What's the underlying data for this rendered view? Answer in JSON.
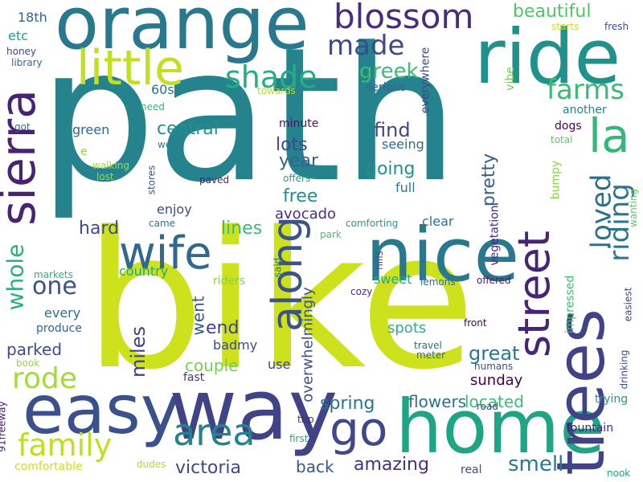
{
  "words": [
    {
      "text": "path",
      "color": "#25838e"
    },
    {
      "text": "bike",
      "color": "#cde11d"
    },
    {
      "text": "orange",
      "color": "#2a788e"
    },
    {
      "text": "ride",
      "color": "#21918c"
    },
    {
      "text": "home",
      "color": "#20a486"
    },
    {
      "text": "easy",
      "color": "#3b518b"
    },
    {
      "text": "way",
      "color": "#404387"
    },
    {
      "text": "nice",
      "color": "#2a788e"
    },
    {
      "text": "trees",
      "color": "#404387"
    },
    {
      "text": "little",
      "color": "#c2df23"
    },
    {
      "text": "sierra",
      "color": "#482374"
    },
    {
      "text": "go",
      "color": "#3e4989"
    },
    {
      "text": "street",
      "color": "#482475"
    },
    {
      "text": "blossom",
      "color": "#472d7b"
    },
    {
      "text": "wife",
      "color": "#31688e"
    },
    {
      "text": "along",
      "color": "#3b528b"
    },
    {
      "text": "la",
      "color": "#35b779"
    },
    {
      "text": "area",
      "color": "#26828e"
    },
    {
      "text": "family",
      "color": "#bddf26"
    },
    {
      "text": "rode",
      "color": "#a5db36"
    },
    {
      "text": "made",
      "color": "#3e4a89"
    },
    {
      "text": "shade",
      "color": "#27ad81"
    },
    {
      "text": "farms",
      "color": "#3aba76"
    },
    {
      "text": "loved",
      "color": "#2e6f8e"
    },
    {
      "text": "riding",
      "color": "#2a768e"
    },
    {
      "text": "whole",
      "color": "#2ab07f"
    },
    {
      "text": "one",
      "color": "#3c508b"
    },
    {
      "text": "greek",
      "color": "#3dbc74"
    },
    {
      "text": "beautiful",
      "color": "#52c569"
    },
    {
      "text": "victoria",
      "color": "#3e4a89"
    },
    {
      "text": "amazing",
      "color": "#46327e"
    },
    {
      "text": "smell",
      "color": "#2a788e"
    },
    {
      "text": "miles",
      "color": "#424086"
    },
    {
      "text": "great",
      "color": "#2a788e"
    },
    {
      "text": "parked",
      "color": "#3d4d8a"
    },
    {
      "text": "spring",
      "color": "#2c728e"
    },
    {
      "text": "back",
      "color": "#39568c"
    },
    {
      "text": "pretty",
      "color": "#355f8d"
    },
    {
      "text": "central",
      "color": "#21918c"
    },
    {
      "text": "lots",
      "color": "#3e4989"
    },
    {
      "text": "year",
      "color": "#33628d"
    },
    {
      "text": "free",
      "color": "#218f8d"
    },
    {
      "text": "find",
      "color": "#3f4788"
    },
    {
      "text": "going",
      "color": "#21918c"
    },
    {
      "text": "lines",
      "color": "#3aba76"
    },
    {
      "text": "hard",
      "color": "#3e4c8a"
    },
    {
      "text": "went",
      "color": "#38588c"
    },
    {
      "text": "end",
      "color": "#414487"
    },
    {
      "text": "overwhelmingly",
      "color": "#3b518b"
    },
    {
      "text": "sunday",
      "color": "#440154"
    },
    {
      "text": "located",
      "color": "#3bbb75"
    },
    {
      "text": "flowers",
      "color": "#2c718e"
    },
    {
      "text": "couple",
      "color": "#75d054"
    },
    {
      "text": "spots",
      "color": "#2db27d"
    },
    {
      "text": "avocado",
      "color": "#46307e"
    },
    {
      "text": "sweet",
      "color": "#26ad81"
    },
    {
      "text": "60s",
      "color": "#2b748e"
    },
    {
      "text": "etc",
      "color": "#1fa188"
    },
    {
      "text": "18th",
      "color": "#33638d"
    },
    {
      "text": "enjoy",
      "color": "#3e4c8a"
    },
    {
      "text": "country",
      "color": "#23a983"
    },
    {
      "text": "every",
      "color": "#2e6e8e"
    },
    {
      "text": "green",
      "color": "#31688e"
    },
    {
      "text": "everywhere",
      "color": "#3f4889"
    },
    {
      "text": "full",
      "color": "#2a788e"
    },
    {
      "text": "seeing",
      "color": "#2e6e8e"
    },
    {
      "text": "minute",
      "color": "#471365"
    },
    {
      "text": "vegetation",
      "color": "#482677"
    },
    {
      "text": "clear",
      "color": "#2d718e"
    },
    {
      "text": "use",
      "color": "#414487"
    },
    {
      "text": "badmy",
      "color": "#3e4a89"
    },
    {
      "text": "riders",
      "color": "#84d44b"
    },
    {
      "text": "fast",
      "color": "#453581"
    },
    {
      "text": "bumpy",
      "color": "#86d549"
    },
    {
      "text": "impressed",
      "color": "#40bd72"
    },
    {
      "text": "vibe",
      "color": "#7ad151"
    },
    {
      "text": "fountain",
      "color": "#481f70"
    },
    {
      "text": "drinking",
      "color": "#3e4a89"
    },
    {
      "text": "produce",
      "color": "#32658e"
    },
    {
      "text": "serious",
      "color": "#31688e"
    },
    {
      "text": "another",
      "color": "#25848e"
    },
    {
      "text": "dogs",
      "color": "#440154"
    },
    {
      "text": "trying",
      "color": "#1f9a8a"
    },
    {
      "text": "easiest",
      "color": "#3e4c8a"
    },
    {
      "text": "wanting",
      "color": "#5ec962"
    },
    {
      "text": "total",
      "color": "#5cc863"
    },
    {
      "text": "travel",
      "color": "#2d708e"
    },
    {
      "text": "meter",
      "color": "#33638d"
    },
    {
      "text": "humans",
      "color": "#3e4c8a"
    },
    {
      "text": "front",
      "color": "#440154"
    },
    {
      "text": "offered",
      "color": "#481c6e"
    },
    {
      "text": "lemons",
      "color": "#30698e"
    },
    {
      "text": "honey",
      "color": "#3f4889"
    },
    {
      "text": "library",
      "color": "#2f6c8e"
    },
    {
      "text": "fresh",
      "color": "#3e4a89"
    },
    {
      "text": "starts",
      "color": "#c8e020"
    },
    {
      "text": "walking",
      "color": "#a2da37"
    },
    {
      "text": "lost",
      "color": "#a0da39"
    },
    {
      "text": "stores",
      "color": "#3b528b"
    },
    {
      "text": "offers",
      "color": "#1f9e89"
    },
    {
      "text": "paved",
      "color": "#482576"
    },
    {
      "text": "towards",
      "color": "#b5de2b"
    },
    {
      "text": "need",
      "color": "#37b878"
    },
    {
      "text": "got",
      "color": "#2e6e8e"
    },
    {
      "text": "well",
      "color": "#297b8e"
    },
    {
      "text": "e",
      "color": "#9bd93c"
    },
    {
      "text": "came",
      "color": "#2c738e"
    },
    {
      "text": "said",
      "color": "#2c728e"
    },
    {
      "text": "park",
      "color": "#4ac16d"
    },
    {
      "text": "hills",
      "color": "#3e4c8a"
    },
    {
      "text": "comforting",
      "color": "#1f9f88"
    },
    {
      "text": "cozy",
      "color": "#472c7a"
    },
    {
      "text": "markets",
      "color": "#2db27d"
    },
    {
      "text": "book",
      "color": "#95d840"
    },
    {
      "text": "comfortable",
      "color": "#cde11d"
    },
    {
      "text": "91freeway",
      "color": "#482071"
    },
    {
      "text": "dudes",
      "color": "#addc30"
    },
    {
      "text": "trip",
      "color": "#472d7b"
    },
    {
      "text": "first",
      "color": "#23a983"
    },
    {
      "text": "road",
      "color": "#424086"
    },
    {
      "text": "real",
      "color": "#3d4e8a"
    },
    {
      "text": "nook",
      "color": "#1f9f88"
    }
  ]
}
